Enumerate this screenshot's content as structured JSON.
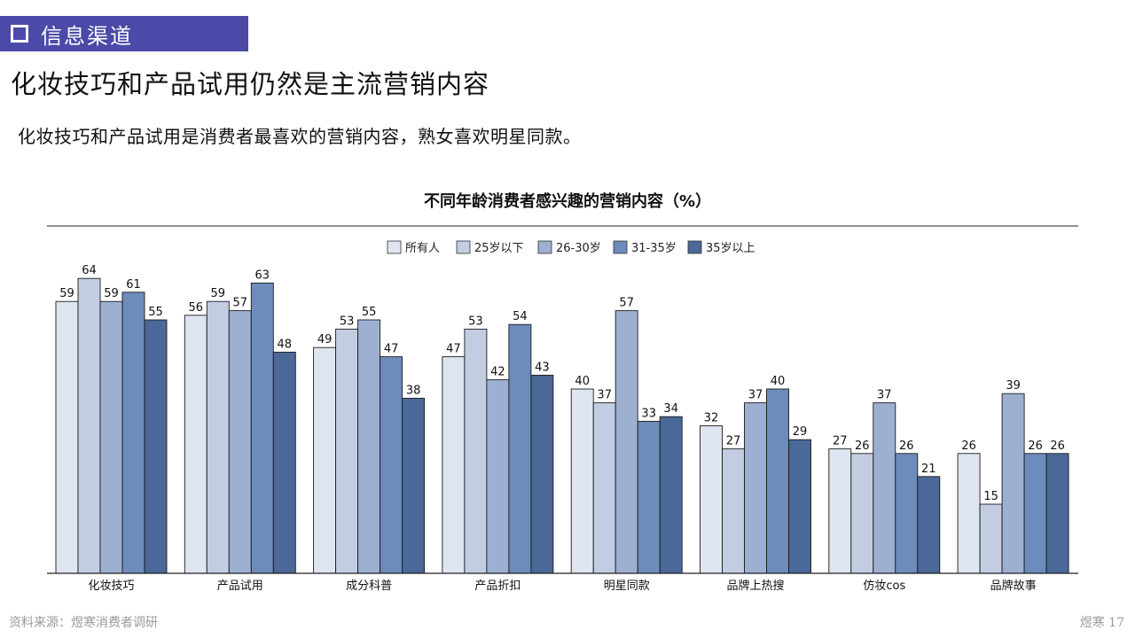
{
  "section": {
    "label": "信息渠道"
  },
  "headline": "化妆技巧和产品试用仍然是主流营销内容",
  "subtitle": "化妆技巧和产品试用是消费者最喜欢的营销内容，熟女喜欢明星同款。",
  "footer": {
    "source": "资料来源：煜寒消费者调研",
    "page": "煜寒 17"
  },
  "colors": {
    "series": [
      "#dfe5f0",
      "#c2cde2",
      "#9eb0d1",
      "#6d8bbb",
      "#4a6898"
    ],
    "section_tag": "#4b4aa8"
  },
  "chart_data": {
    "type": "bar",
    "title": "不同年龄消费者感兴趣的营销内容（%）",
    "categories": [
      "化妆技巧",
      "产品试用",
      "成分科普",
      "产品折扣",
      "明星同款",
      "品牌上热搜",
      "仿妆cos",
      "品牌故事"
    ],
    "series": [
      {
        "name": "所有人",
        "values": [
          59,
          56,
          49,
          47,
          40,
          32,
          27,
          26
        ]
      },
      {
        "name": "25岁以下",
        "values": [
          64,
          59,
          53,
          53,
          37,
          27,
          26,
          15
        ]
      },
      {
        "name": "26-30岁",
        "values": [
          59,
          57,
          55,
          42,
          57,
          37,
          37,
          39
        ]
      },
      {
        "name": "31-35岁",
        "values": [
          61,
          63,
          47,
          54,
          33,
          40,
          26,
          26
        ]
      },
      {
        "name": "35岁以上",
        "values": [
          55,
          48,
          38,
          43,
          34,
          29,
          21,
          26
        ]
      }
    ],
    "legend_position": "top-center",
    "data_labels": true,
    "grid": false
  }
}
